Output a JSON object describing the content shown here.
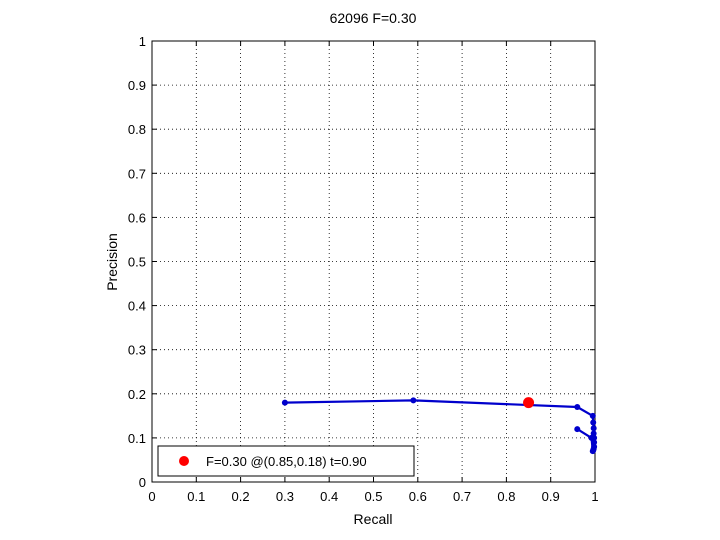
{
  "chart_data": {
    "type": "line",
    "title": "62096 F=0.30",
    "xlabel": "Recall",
    "ylabel": "Precision",
    "xlim": [
      0,
      1
    ],
    "ylim": [
      0,
      1
    ],
    "xticks": [
      "0",
      "0.1",
      "0.2",
      "0.3",
      "0.4",
      "0.5",
      "0.6",
      "0.7",
      "0.8",
      "0.9",
      "1"
    ],
    "yticks": [
      "0",
      "0.1",
      "0.2",
      "0.3",
      "0.4",
      "0.5",
      "0.6",
      "0.7",
      "0.8",
      "0.9",
      "1"
    ],
    "grid": true,
    "legend_position": "bottom-left",
    "series": [
      {
        "color": "#0000cc",
        "x": [
          0.3,
          0.59,
          0.96,
          0.995,
          0.996,
          0.997,
          0.997,
          0.998,
          0.998,
          0.998,
          0.997,
          0.996,
          0.995,
          0.992,
          0.96
        ],
        "y": [
          0.18,
          0.185,
          0.17,
          0.15,
          0.135,
          0.122,
          0.11,
          0.1,
          0.09,
          0.08,
          0.075,
          0.072,
          0.07,
          0.1,
          0.12
        ]
      }
    ],
    "best_point": {
      "color": "#ff0000",
      "x": 0.85,
      "y": 0.18,
      "legend_label": "F=0.30 @(0.85,0.18) t=0.90"
    }
  }
}
